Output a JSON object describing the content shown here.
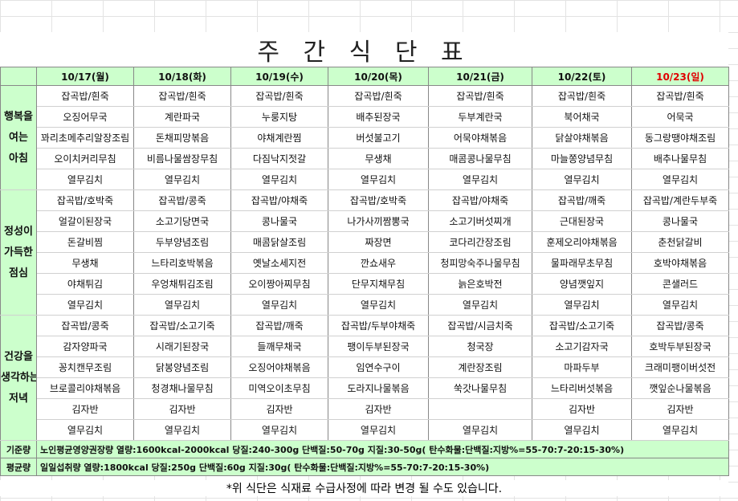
{
  "title": "주 간 식 단 표",
  "header": {
    "days": [
      "10/17(월)",
      "10/18(화)",
      "10/19(수)",
      "10/20(목)",
      "10/21(금)",
      "10/22(토)",
      "10/23(일)"
    ]
  },
  "sections": [
    {
      "label": [
        "행복을",
        "여는",
        "아침"
      ],
      "rows": [
        [
          "잡곡밥/흰죽",
          "잡곡밥/흰죽",
          "잡곡밥/흰죽",
          "잡곡밥/흰죽",
          "잡곡밥/흰죽",
          "잡곡밥/흰죽",
          "잡곡밥/흰죽"
        ],
        [
          "오징어무국",
          "계란파국",
          "누룽지탕",
          "배추된장국",
          "두부계란국",
          "북어채국",
          "어묵국"
        ],
        [
          "꽈리초메추리알장조림",
          "돈채피망볶음",
          "야채계란찜",
          "버섯불고기",
          "어묵야채볶음",
          "닭살야채볶음",
          "동그랑땡야채조림"
        ],
        [
          "오이치커리무침",
          "비름나물쌈장무침",
          "다짐낙지젓갈",
          "무생채",
          "매콤콩나물무침",
          "마늘쫑양념무침",
          "배추나물무침"
        ],
        [
          "열무김치",
          "열무김치",
          "열무김치",
          "열무김치",
          "열무김치",
          "열무김치",
          "열무김치"
        ]
      ]
    },
    {
      "label": [
        "정성이",
        "가득한",
        "점심"
      ],
      "rows": [
        [
          "잡곡밥/호박죽",
          "잡곡밥/콩죽",
          "잡곡밥/야채죽",
          "잡곡밥/호박죽",
          "잡곡밥/야채죽",
          "잡곡밥/깨죽",
          "잡곡밥/계란두부죽"
        ],
        [
          "얼갈이된장국",
          "소고기당면국",
          "콩나물국",
          "나가사끼짬뽕국",
          "소고기버섯찌개",
          "근대된장국",
          "콩나물국"
        ],
        [
          "돈갈비찜",
          "두부양념조림",
          "매콤닭살조림",
          "짜장면",
          "코다리간장조림",
          "훈제오리야채볶음",
          "춘천닭갈비"
        ],
        [
          "무생채",
          "느타리호박볶음",
          "옛날소세지전",
          "깐쇼새우",
          "청피망숙주나물무침",
          "물파래무초무침",
          "호박야채볶음"
        ],
        [
          "야채튀김",
          "우엉채튀김조림",
          "오이짱아찌무침",
          "단무지채무침",
          "늙은호박전",
          "양념깻잎지",
          "콘샐러드"
        ],
        [
          "열무김치",
          "열무김치",
          "열무김치",
          "열무김치",
          "열무김치",
          "열무김치",
          "열무김치"
        ]
      ]
    },
    {
      "label": [
        "건강을",
        "생각하는",
        "저녁"
      ],
      "rows": [
        [
          "잡곡밥/콩죽",
          "잡곡밥/소고기죽",
          "잡곡밥/깨죽",
          "잡곡밥/두부야채죽",
          "잡곡밥/시금치죽",
          "잡곡밥/소고기죽",
          "잡곡밥/콩죽"
        ],
        [
          "감자양파국",
          "시래기된장국",
          "들깨무채국",
          "팽이두부된장국",
          "청국장",
          "소고기감자국",
          "호박두부된장국"
        ],
        [
          "꽁치캔무조림",
          "닭봉양념조림",
          "오징어야채볶음",
          "임연수구이",
          "계란장조림",
          "마파두부",
          "크래미팽이버섯전"
        ],
        [
          "브로콜리야채볶음",
          "청경채나물무침",
          "미역오이초무침",
          "도라지나물볶음",
          "쑥갓나물무침",
          "느타리버섯볶음",
          "깻잎순나물볶음"
        ],
        [
          "김자반",
          "김자반",
          "김자반",
          "김자반",
          null,
          "김자반",
          "김자반"
        ],
        [
          "열무김치",
          "열무김치",
          "열무김치",
          "열무김치",
          "열무김치",
          "열무김치",
          "열무김치"
        ]
      ]
    }
  ],
  "footer": [
    {
      "label": "기준량",
      "text": "노인평균영양권장량 열량:1600kcal-2000kcal 당질:240-300g 단백질:50-70g 지질:30-50g( 탄수화물:단백질:지방%=55-70:7-20:15-30%)"
    },
    {
      "label": "평균량",
      "text": "일일섭취량 열량:1800kcal 당질:250g 단백질:60g 지질:30g( 탄수화물:단백질:지방%=55-70:7-20:15-30%)"
    }
  ],
  "note": "*위 식단은 식재료 수급사정에 따라 변경 될 수도 있습니다."
}
